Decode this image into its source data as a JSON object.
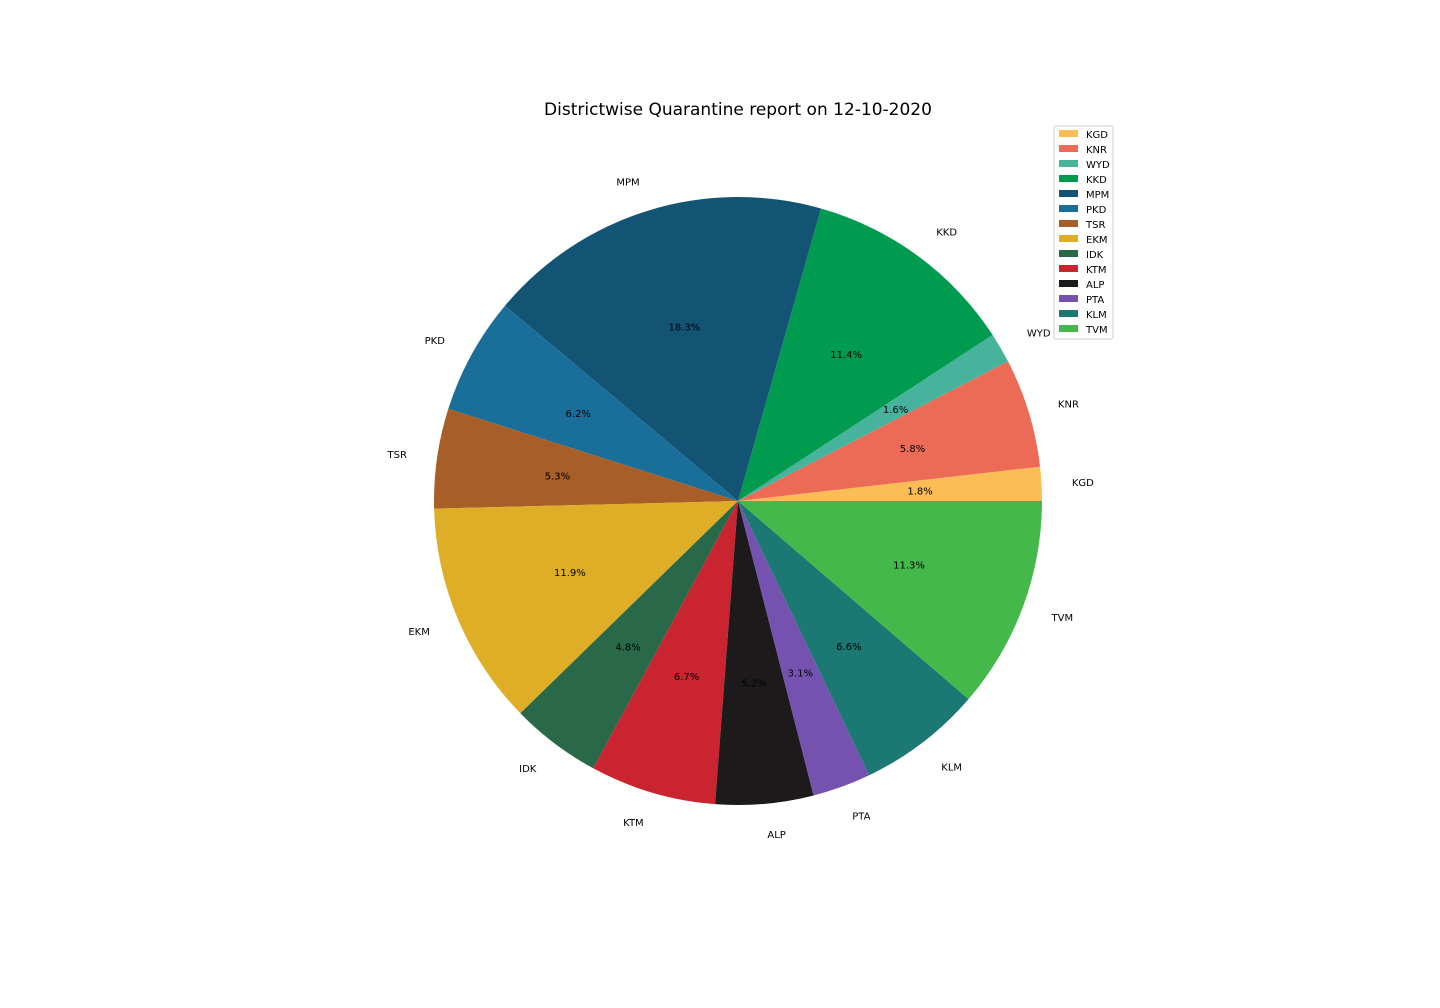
{
  "chart_data": {
    "type": "pie",
    "title": "Districtwise Quarantine report on 12-10-2020",
    "start_angle_deg": 0,
    "direction": "counterclockwise",
    "legend_placement": "top-right",
    "slices": [
      {
        "label": "KGD",
        "value": 1.8,
        "pct_label": "1.8%",
        "color": "#fdbd56"
      },
      {
        "label": "KNR",
        "value": 5.8,
        "pct_label": "5.8%",
        "color": "#ec6b56"
      },
      {
        "label": "WYD",
        "value": 1.6,
        "pct_label": "1.6%",
        "color": "#47b39c"
      },
      {
        "label": "KKD",
        "value": 11.4,
        "pct_label": "11.4%",
        "color": "#009b4e"
      },
      {
        "label": "MPM",
        "value": 18.3,
        "pct_label": "18.3%",
        "color": "#135474"
      },
      {
        "label": "PKD",
        "value": 6.2,
        "pct_label": "6.2%",
        "color": "#1a6f9a"
      },
      {
        "label": "TSR",
        "value": 5.3,
        "pct_label": "5.3%",
        "color": "#a85e27"
      },
      {
        "label": "EKM",
        "value": 11.9,
        "pct_label": "11.9%",
        "color": "#dfae27"
      },
      {
        "label": "IDK",
        "value": 4.8,
        "pct_label": "4.8%",
        "color": "#296848"
      },
      {
        "label": "KTM",
        "value": 6.7,
        "pct_label": "6.7%",
        "color": "#c9242f"
      },
      {
        "label": "ALP",
        "value": 5.2,
        "pct_label": "5.2%",
        "color": "#1d1a1b"
      },
      {
        "label": "PTA",
        "value": 3.1,
        "pct_label": "3.1%",
        "color": "#7552b0"
      },
      {
        "label": "KLM",
        "value": 6.6,
        "pct_label": "6.6%",
        "color": "#1b7873"
      },
      {
        "label": "TVM",
        "value": 11.3,
        "pct_label": "11.3%",
        "color": "#45b84b"
      }
    ]
  }
}
